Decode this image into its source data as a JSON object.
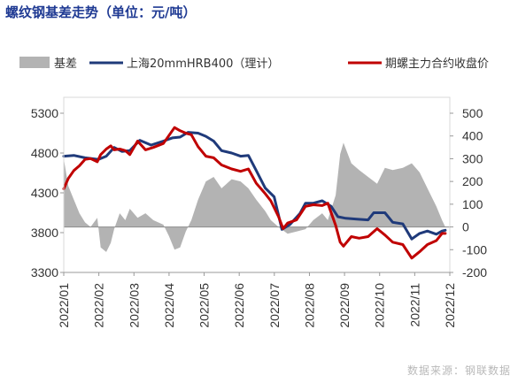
{
  "title": "螺纹钢基差走势（单位：元/吨）",
  "source": "数据来源：钢联数据",
  "chart_data": {
    "type": "line",
    "title": "螺纹钢基差走势（单位：元/吨）",
    "legend_position": "top",
    "grid": false,
    "x_categories": [
      "2022/01",
      "2022/02",
      "2022/03",
      "2022/04",
      "2022/05",
      "2022/06",
      "2022/07",
      "2022/08",
      "2022/09",
      "2022/10",
      "2022/11",
      "2022/12"
    ],
    "y_left": {
      "lim": [
        3300,
        5300
      ],
      "ticks": [
        3300,
        3800,
        4300,
        4800,
        5300
      ]
    },
    "y_right": {
      "lim": [
        -200,
        500
      ],
      "ticks": [
        -200,
        -100,
        0,
        100,
        200,
        300,
        400,
        500
      ]
    },
    "series": [
      {
        "name": "基差",
        "kind": "area",
        "axis": "right",
        "color": "#b3b3b3",
        "points": [
          [
            "2022-01-01",
            300
          ],
          [
            "2022-01-05",
            180
          ],
          [
            "2022-01-10",
            120
          ],
          [
            "2022-01-15",
            60
          ],
          [
            "2022-01-20",
            20
          ],
          [
            "2022-01-25",
            0
          ],
          [
            "2022-01-31",
            40
          ],
          [
            "2022-02-03",
            -90
          ],
          [
            "2022-02-08",
            -110
          ],
          [
            "2022-02-12",
            -70
          ],
          [
            "2022-02-15",
            -10
          ],
          [
            "2022-02-20",
            60
          ],
          [
            "2022-02-25",
            30
          ],
          [
            "2022-03-01",
            80
          ],
          [
            "2022-03-08",
            40
          ],
          [
            "2022-03-15",
            60
          ],
          [
            "2022-03-22",
            30
          ],
          [
            "2022-03-31",
            10
          ],
          [
            "2022-04-05",
            -40
          ],
          [
            "2022-04-10",
            -100
          ],
          [
            "2022-04-15",
            -90
          ],
          [
            "2022-04-20",
            -20
          ],
          [
            "2022-04-25",
            30
          ],
          [
            "2022-05-01",
            120
          ],
          [
            "2022-05-08",
            200
          ],
          [
            "2022-05-15",
            220
          ],
          [
            "2022-05-22",
            170
          ],
          [
            "2022-05-31",
            210
          ],
          [
            "2022-06-08",
            200
          ],
          [
            "2022-06-15",
            170
          ],
          [
            "2022-06-22",
            120
          ],
          [
            "2022-06-30",
            70
          ],
          [
            "2022-07-05",
            30
          ],
          [
            "2022-07-12",
            0
          ],
          [
            "2022-07-20",
            -30
          ],
          [
            "2022-07-28",
            -20
          ],
          [
            "2022-08-05",
            -10
          ],
          [
            "2022-08-12",
            30
          ],
          [
            "2022-08-20",
            60
          ],
          [
            "2022-08-25",
            30
          ],
          [
            "2022-09-01",
            140
          ],
          [
            "2022-09-05",
            320
          ],
          [
            "2022-09-08",
            370
          ],
          [
            "2022-09-15",
            280
          ],
          [
            "2022-09-22",
            250
          ],
          [
            "2022-09-30",
            220
          ],
          [
            "2022-10-08",
            190
          ],
          [
            "2022-10-15",
            260
          ],
          [
            "2022-10-22",
            250
          ],
          [
            "2022-10-31",
            260
          ],
          [
            "2022-11-08",
            280
          ],
          [
            "2022-11-15",
            240
          ],
          [
            "2022-11-22",
            170
          ],
          [
            "2022-11-30",
            90
          ],
          [
            "2022-12-05",
            30
          ],
          [
            "2022-12-08",
            0
          ]
        ]
      },
      {
        "name": "上海20mmHRB400（理计）",
        "kind": "line",
        "axis": "left",
        "color": "#1f3a7a",
        "points": [
          [
            "2022-01-01",
            4760
          ],
          [
            "2022-01-10",
            4770
          ],
          [
            "2022-01-20",
            4740
          ],
          [
            "2022-02-01",
            4720
          ],
          [
            "2022-02-08",
            4760
          ],
          [
            "2022-02-15",
            4870
          ],
          [
            "2022-02-22",
            4820
          ],
          [
            "2022-03-01",
            4830
          ],
          [
            "2022-03-10",
            4960
          ],
          [
            "2022-03-20",
            4900
          ],
          [
            "2022-03-31",
            4950
          ],
          [
            "2022-04-08",
            4990
          ],
          [
            "2022-04-15",
            5000
          ],
          [
            "2022-04-22",
            5060
          ],
          [
            "2022-05-01",
            5050
          ],
          [
            "2022-05-08",
            5010
          ],
          [
            "2022-05-15",
            4950
          ],
          [
            "2022-05-22",
            4830
          ],
          [
            "2022-05-31",
            4800
          ],
          [
            "2022-06-08",
            4760
          ],
          [
            "2022-06-15",
            4770
          ],
          [
            "2022-06-22",
            4580
          ],
          [
            "2022-06-30",
            4360
          ],
          [
            "2022-07-08",
            4250
          ],
          [
            "2022-07-15",
            3840
          ],
          [
            "2022-07-22",
            3900
          ],
          [
            "2022-07-31",
            4040
          ],
          [
            "2022-08-05",
            4170
          ],
          [
            "2022-08-12",
            4170
          ],
          [
            "2022-08-20",
            4200
          ],
          [
            "2022-08-28",
            4130
          ],
          [
            "2022-09-03",
            4000
          ],
          [
            "2022-09-10",
            3980
          ],
          [
            "2022-09-20",
            3970
          ],
          [
            "2022-09-30",
            3960
          ],
          [
            "2022-10-05",
            4050
          ],
          [
            "2022-10-15",
            4050
          ],
          [
            "2022-10-22",
            3930
          ],
          [
            "2022-10-31",
            3910
          ],
          [
            "2022-11-08",
            3720
          ],
          [
            "2022-11-15",
            3790
          ],
          [
            "2022-11-22",
            3820
          ],
          [
            "2022-11-30",
            3780
          ],
          [
            "2022-12-05",
            3820
          ],
          [
            "2022-12-08",
            3830
          ]
        ]
      },
      {
        "name": "期螺主力合约收盘价",
        "kind": "line",
        "axis": "left",
        "color": "#c00000",
        "points": [
          [
            "2022-01-01",
            4350
          ],
          [
            "2022-01-05",
            4480
          ],
          [
            "2022-01-10",
            4580
          ],
          [
            "2022-01-15",
            4640
          ],
          [
            "2022-01-20",
            4720
          ],
          [
            "2022-01-25",
            4730
          ],
          [
            "2022-01-31",
            4690
          ],
          [
            "2022-02-03",
            4780
          ],
          [
            "2022-02-08",
            4850
          ],
          [
            "2022-02-12",
            4890
          ],
          [
            "2022-02-15",
            4840
          ],
          [
            "2022-02-20",
            4850
          ],
          [
            "2022-02-25",
            4830
          ],
          [
            "2022-03-01",
            4780
          ],
          [
            "2022-03-08",
            4950
          ],
          [
            "2022-03-15",
            4840
          ],
          [
            "2022-03-22",
            4870
          ],
          [
            "2022-03-31",
            4920
          ],
          [
            "2022-04-05",
            5020
          ],
          [
            "2022-04-10",
            5120
          ],
          [
            "2022-04-15",
            5080
          ],
          [
            "2022-04-20",
            5050
          ],
          [
            "2022-04-25",
            5030
          ],
          [
            "2022-05-01",
            4880
          ],
          [
            "2022-05-08",
            4760
          ],
          [
            "2022-05-15",
            4740
          ],
          [
            "2022-05-22",
            4650
          ],
          [
            "2022-05-31",
            4600
          ],
          [
            "2022-06-08",
            4570
          ],
          [
            "2022-06-15",
            4600
          ],
          [
            "2022-06-22",
            4420
          ],
          [
            "2022-06-30",
            4290
          ],
          [
            "2022-07-05",
            4200
          ],
          [
            "2022-07-12",
            4000
          ],
          [
            "2022-07-16",
            3850
          ],
          [
            "2022-07-20",
            3920
          ],
          [
            "2022-07-28",
            3960
          ],
          [
            "2022-08-05",
            4130
          ],
          [
            "2022-08-12",
            4150
          ],
          [
            "2022-08-20",
            4140
          ],
          [
            "2022-08-25",
            4170
          ],
          [
            "2022-09-01",
            3890
          ],
          [
            "2022-09-05",
            3680
          ],
          [
            "2022-09-08",
            3630
          ],
          [
            "2022-09-15",
            3750
          ],
          [
            "2022-09-22",
            3730
          ],
          [
            "2022-09-30",
            3750
          ],
          [
            "2022-10-08",
            3850
          ],
          [
            "2022-10-15",
            3770
          ],
          [
            "2022-10-22",
            3680
          ],
          [
            "2022-10-31",
            3650
          ],
          [
            "2022-11-08",
            3480
          ],
          [
            "2022-11-15",
            3560
          ],
          [
            "2022-11-22",
            3650
          ],
          [
            "2022-11-30",
            3700
          ],
          [
            "2022-12-05",
            3790
          ],
          [
            "2022-12-08",
            3790
          ]
        ]
      }
    ]
  }
}
